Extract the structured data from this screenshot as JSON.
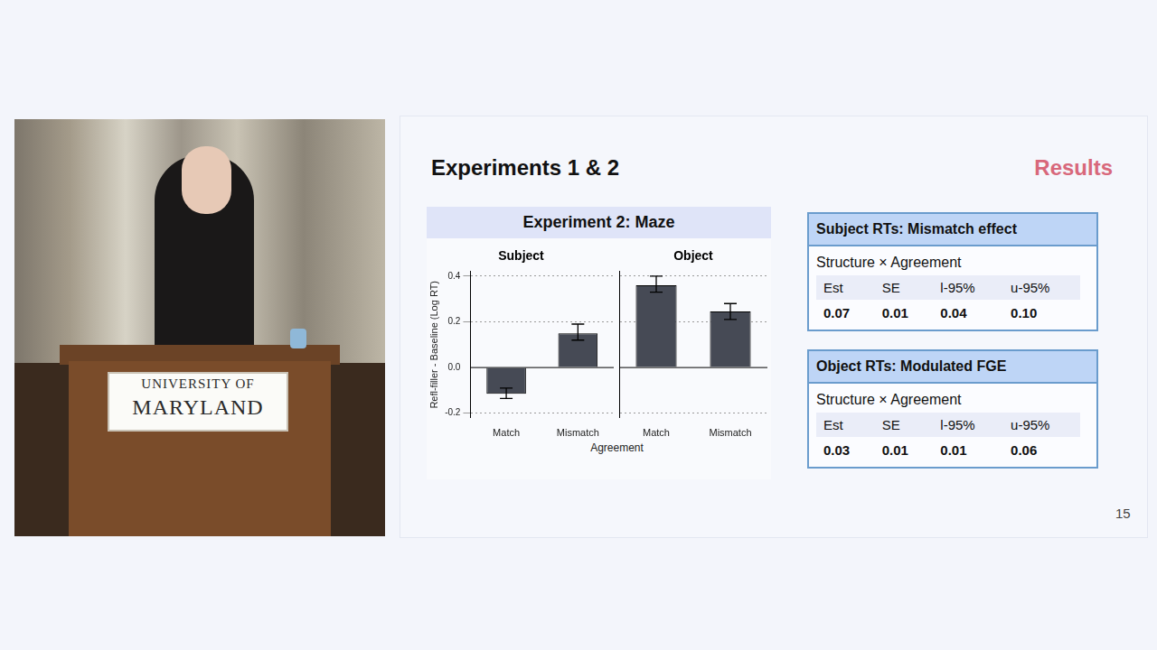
{
  "photo": {
    "sign_lines": [
      "UNIVERSITY OF",
      "MARYLAND"
    ]
  },
  "slide": {
    "title": "Experiments 1 & 2",
    "section": "Results",
    "page_number": "15"
  },
  "chart_panel": {
    "header": "Experiment 2: Maze",
    "x_label": "Agreement"
  },
  "chart_data": [
    {
      "type": "bar",
      "title": "Subject",
      "y_label": "Refl-filler - Baseline (Log RT)",
      "categories": [
        "Match",
        "Mismatch"
      ],
      "values": [
        -0.115,
        0.15
      ],
      "error_low": [
        -0.135,
        0.12
      ],
      "error_high": [
        -0.09,
        0.19
      ],
      "color": "#464a55",
      "ylim": [
        -0.22,
        0.42
      ],
      "yticks": [
        -0.2,
        {
          "value": 0,
          "label": "0.0"
        },
        0.2,
        0.4
      ],
      "grid": true
    },
    {
      "type": "bar",
      "title": "Object",
      "categories": [
        "Match",
        "Mismatch"
      ],
      "values": [
        0.36,
        0.245
      ],
      "error_low": [
        0.33,
        0.21
      ],
      "error_high": [
        0.4,
        0.28
      ],
      "color": "#464a55",
      "ylim": [
        -0.22,
        0.42
      ],
      "yticks": [
        -0.2,
        {
          "value": 0,
          "label": "0.0"
        },
        0.2,
        0.4
      ],
      "grid": true,
      "tick_labels": "x"
    }
  ],
  "tables": [
    {
      "title": "Subject RTs: Mismatch effect",
      "effect": "Structure × Agreement",
      "columns": [
        "Est",
        "SE",
        "l-95%",
        "u-95%"
      ],
      "rows": [
        [
          "0.07",
          "0.01",
          "0.04",
          "0.10"
        ]
      ]
    },
    {
      "title": "Object RTs: Modulated FGE",
      "effect": "Structure × Agreement",
      "columns": [
        "Est",
        "SE",
        "l-95%",
        "u-95%"
      ],
      "rows": [
        [
          "0.03",
          "0.01",
          "0.01",
          "0.06"
        ]
      ]
    }
  ]
}
